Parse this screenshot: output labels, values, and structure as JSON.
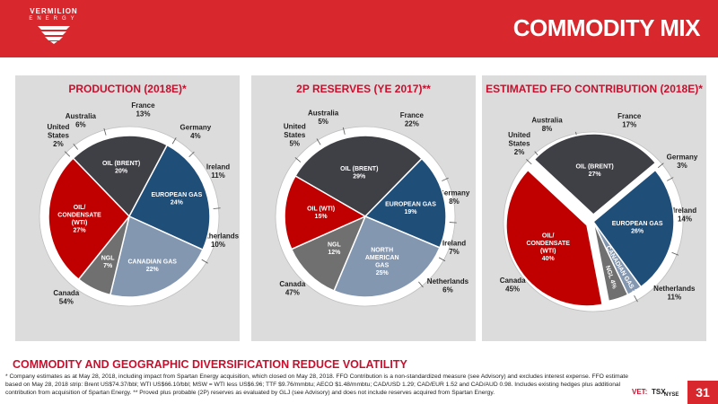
{
  "header": {
    "logo_name": "VERMILION",
    "logo_sub": "ENERGY",
    "title": "COMMODITY MIX"
  },
  "chart_data": [
    {
      "type": "pie",
      "title": "PRODUCTION (2018E)*",
      "commodity": [
        {
          "label": [
            "OIL (BRENT)",
            "20%"
          ],
          "value": 20,
          "color": "#3f3f46"
        },
        {
          "label": [
            "EUROPEAN GAS",
            "24%"
          ],
          "value": 24,
          "color": "#1f4e79"
        },
        {
          "label": [
            "CANADIAN GAS",
            "22%"
          ],
          "value": 22,
          "color": "#8497b0"
        },
        {
          "label": [
            "NGL",
            "7%"
          ],
          "value": 7,
          "color": "#707070"
        },
        {
          "label": [
            "OIL/",
            "CONDENSATE",
            "(WTI)",
            "27%"
          ],
          "value": 27,
          "color": "#c00000"
        }
      ],
      "geography": [
        {
          "label": [
            "France",
            "13%"
          ],
          "value": 13
        },
        {
          "label": [
            "Germany",
            "4%"
          ],
          "value": 4
        },
        {
          "label": [
            "Ireland",
            "11%"
          ],
          "value": 11
        },
        {
          "label": [
            "Netherlands",
            "10%"
          ],
          "value": 10
        },
        {
          "label": [
            "Canada",
            "54%"
          ],
          "value": 54
        },
        {
          "label": [
            "United",
            "States",
            "2%"
          ],
          "value": 2
        },
        {
          "label": [
            "Australia",
            "6%"
          ],
          "value": 6
        }
      ]
    },
    {
      "type": "pie",
      "title": "2P RESERVES (YE 2017)**",
      "commodity": [
        {
          "label": [
            "OIL (BRENT)",
            "29%"
          ],
          "value": 29,
          "color": "#3f3f46"
        },
        {
          "label": [
            "EUROPEAN GAS",
            "19%"
          ],
          "value": 19,
          "color": "#1f4e79"
        },
        {
          "label": [
            "NORTH",
            "AMERICAN",
            "GAS",
            "25%"
          ],
          "value": 25,
          "color": "#8497b0"
        },
        {
          "label": [
            "NGL",
            "12%"
          ],
          "value": 12,
          "color": "#707070"
        },
        {
          "label": [
            "OIL (WTI)",
            "15%"
          ],
          "value": 15,
          "color": "#c00000"
        }
      ],
      "geography": [
        {
          "label": [
            "France",
            "22%"
          ],
          "value": 22
        },
        {
          "label": [
            "Germany",
            "8%"
          ],
          "value": 8
        },
        {
          "label": [
            "Ireland",
            "7%"
          ],
          "value": 7
        },
        {
          "label": [
            "Netherlands",
            "6%"
          ],
          "value": 6
        },
        {
          "label": [
            "Canada",
            "47%"
          ],
          "value": 47
        },
        {
          "label": [
            "United",
            "States",
            "5%"
          ],
          "value": 5
        },
        {
          "label": [
            "Australia",
            "5%"
          ],
          "value": 5
        }
      ]
    },
    {
      "type": "pie",
      "title": "ESTIMATED FFO CONTRIBUTION (2018E)*",
      "commodity": [
        {
          "label": [
            "OIL (BRENT)",
            "27%"
          ],
          "value": 27,
          "color": "#3f3f46"
        },
        {
          "label": [
            "EUROPEAN GAS",
            "26%"
          ],
          "value": 26,
          "color": "#1f4e79"
        },
        {
          "label": [
            "CANADIAN GAS 3%"
          ],
          "value": 3,
          "color": "#8497b0"
        },
        {
          "label": [
            "NGL 4%"
          ],
          "value": 4,
          "color": "#707070"
        },
        {
          "label": [
            "OIL/",
            "CONDENSATE",
            "(WTI)",
            "40%"
          ],
          "value": 40,
          "color": "#c00000"
        }
      ],
      "geography": [
        {
          "label": [
            "France",
            "17%"
          ],
          "value": 17
        },
        {
          "label": [
            "Germany",
            "3%"
          ],
          "value": 3
        },
        {
          "label": [
            "Ireland",
            "14%"
          ],
          "value": 14
        },
        {
          "label": [
            "Netherlands",
            "11%"
          ],
          "value": 11
        },
        {
          "label": [
            "Canada",
            "45%"
          ],
          "value": 45
        },
        {
          "label": [
            "United",
            "States",
            "2%"
          ],
          "value": 2
        },
        {
          "label": [
            "Australia",
            "8%"
          ],
          "value": 8
        }
      ]
    }
  ],
  "footer": {
    "headline": "COMMODITY AND GEOGRAPHIC DIVERSIFICATION REDUCE VOLATILITY",
    "footnote": "* Company estimates as at May 28, 2018, including impact from Spartan Energy acquisition, which closed on May 28, 2018. FFO Contribution is a non-standardized measure (see Advisory) and excludes interest expense. FFO estimate based on May 28, 2018 strip: Brent US$74.37/bbl; WTI US$66.10/bbl; MSW = WTI less US$6.96; TTF $9.76/mmbtu; AECO $1.48/mmbtu; CAD/USD 1.29; CAD/EUR 1.52 and CAD/AUD 0.98. Includes existing hedges plus additional contribution from acquisition of Spartan Energy. ** Proved plus probable (2P) reserves as evaluated by GLJ (see Advisory) and does not include reserves acquired from Spartan Energy.",
    "exchange_vet": "VET:",
    "exchange_tsx": "TSX",
    "exchange_nyse": "NYSE",
    "page_number": "31"
  }
}
